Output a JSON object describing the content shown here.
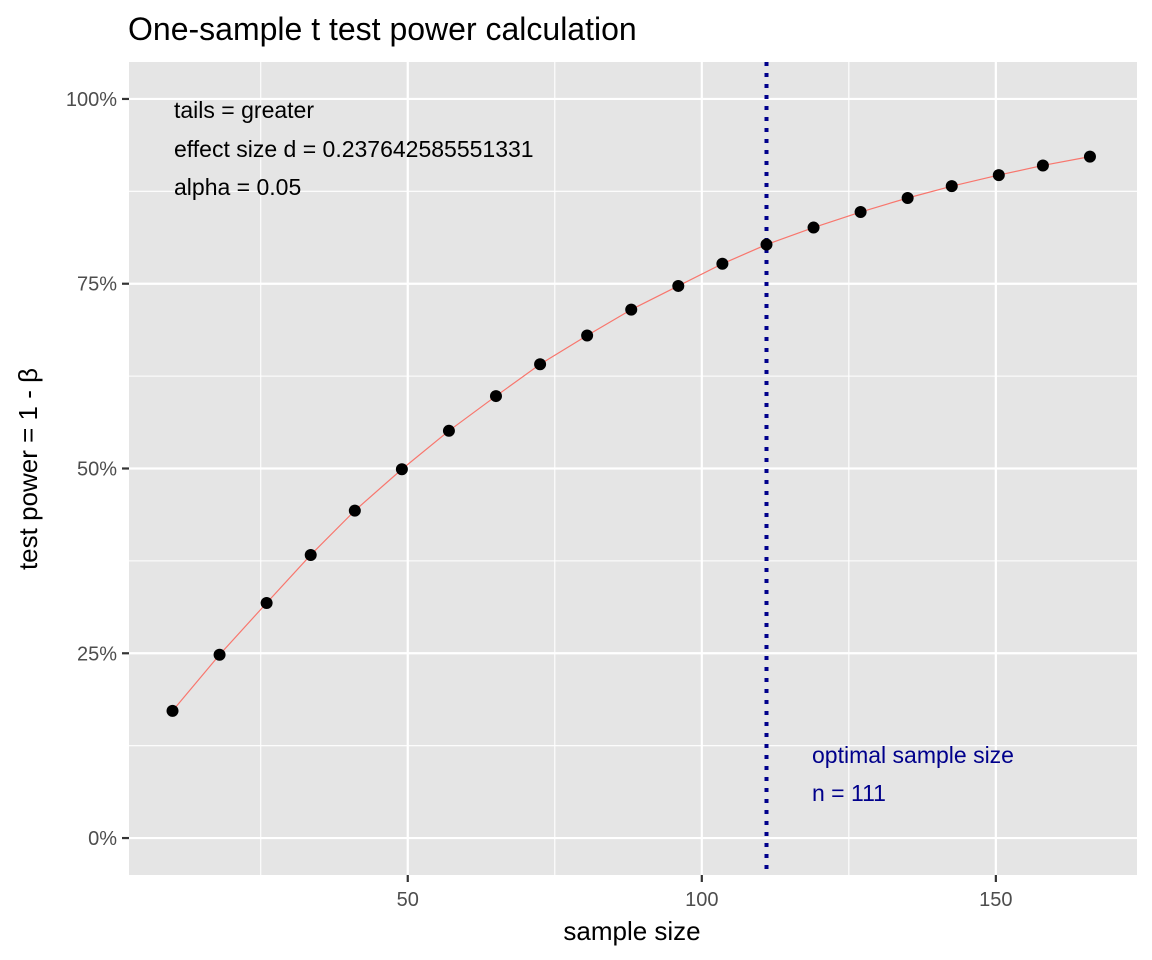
{
  "chart_data": {
    "type": "scatter",
    "title": "One-sample t test power calculation",
    "xlabel": "sample size",
    "ylabel": "test power = 1 - β",
    "xlim": [
      2.6,
      174
    ],
    "ylim": [
      -0.05,
      1.05
    ],
    "x_ticks": [
      50,
      100,
      150
    ],
    "x_tick_labels": [
      "50",
      "100",
      "150"
    ],
    "y_ticks": [
      0,
      0.25,
      0.5,
      0.75,
      1.0
    ],
    "y_tick_labels": [
      "0%",
      "25%",
      "50%",
      "75%",
      "100%"
    ],
    "grid": true,
    "legend": "none",
    "series": [
      {
        "x": [
          10,
          18,
          26,
          33.5,
          41,
          49,
          57,
          65,
          72.5,
          80.5,
          88,
          96,
          103.5,
          111,
          119,
          127,
          135,
          142.5,
          150.5,
          158,
          166
        ],
        "y": [
          0.172,
          0.248,
          0.318,
          0.383,
          0.443,
          0.499,
          0.551,
          0.598,
          0.641,
          0.68,
          0.715,
          0.747,
          0.777,
          0.803,
          0.826,
          0.847,
          0.866,
          0.882,
          0.897,
          0.91,
          0.922
        ]
      }
    ],
    "reference_line": {
      "x": 111,
      "color": "#00008b",
      "style": "dotted"
    },
    "annotations": {
      "tails": "tails = greater",
      "effect_size": "effect size d = 0.237642585551331",
      "alpha": "alpha = 0.05",
      "optimal_label": "optimal sample size",
      "optimal_n": "n = 111"
    },
    "colors": {
      "panel": "#e5e5e5",
      "grid": "#ffffff",
      "line": "#f8766d",
      "points": "#000000",
      "reference": "#00008b"
    }
  }
}
